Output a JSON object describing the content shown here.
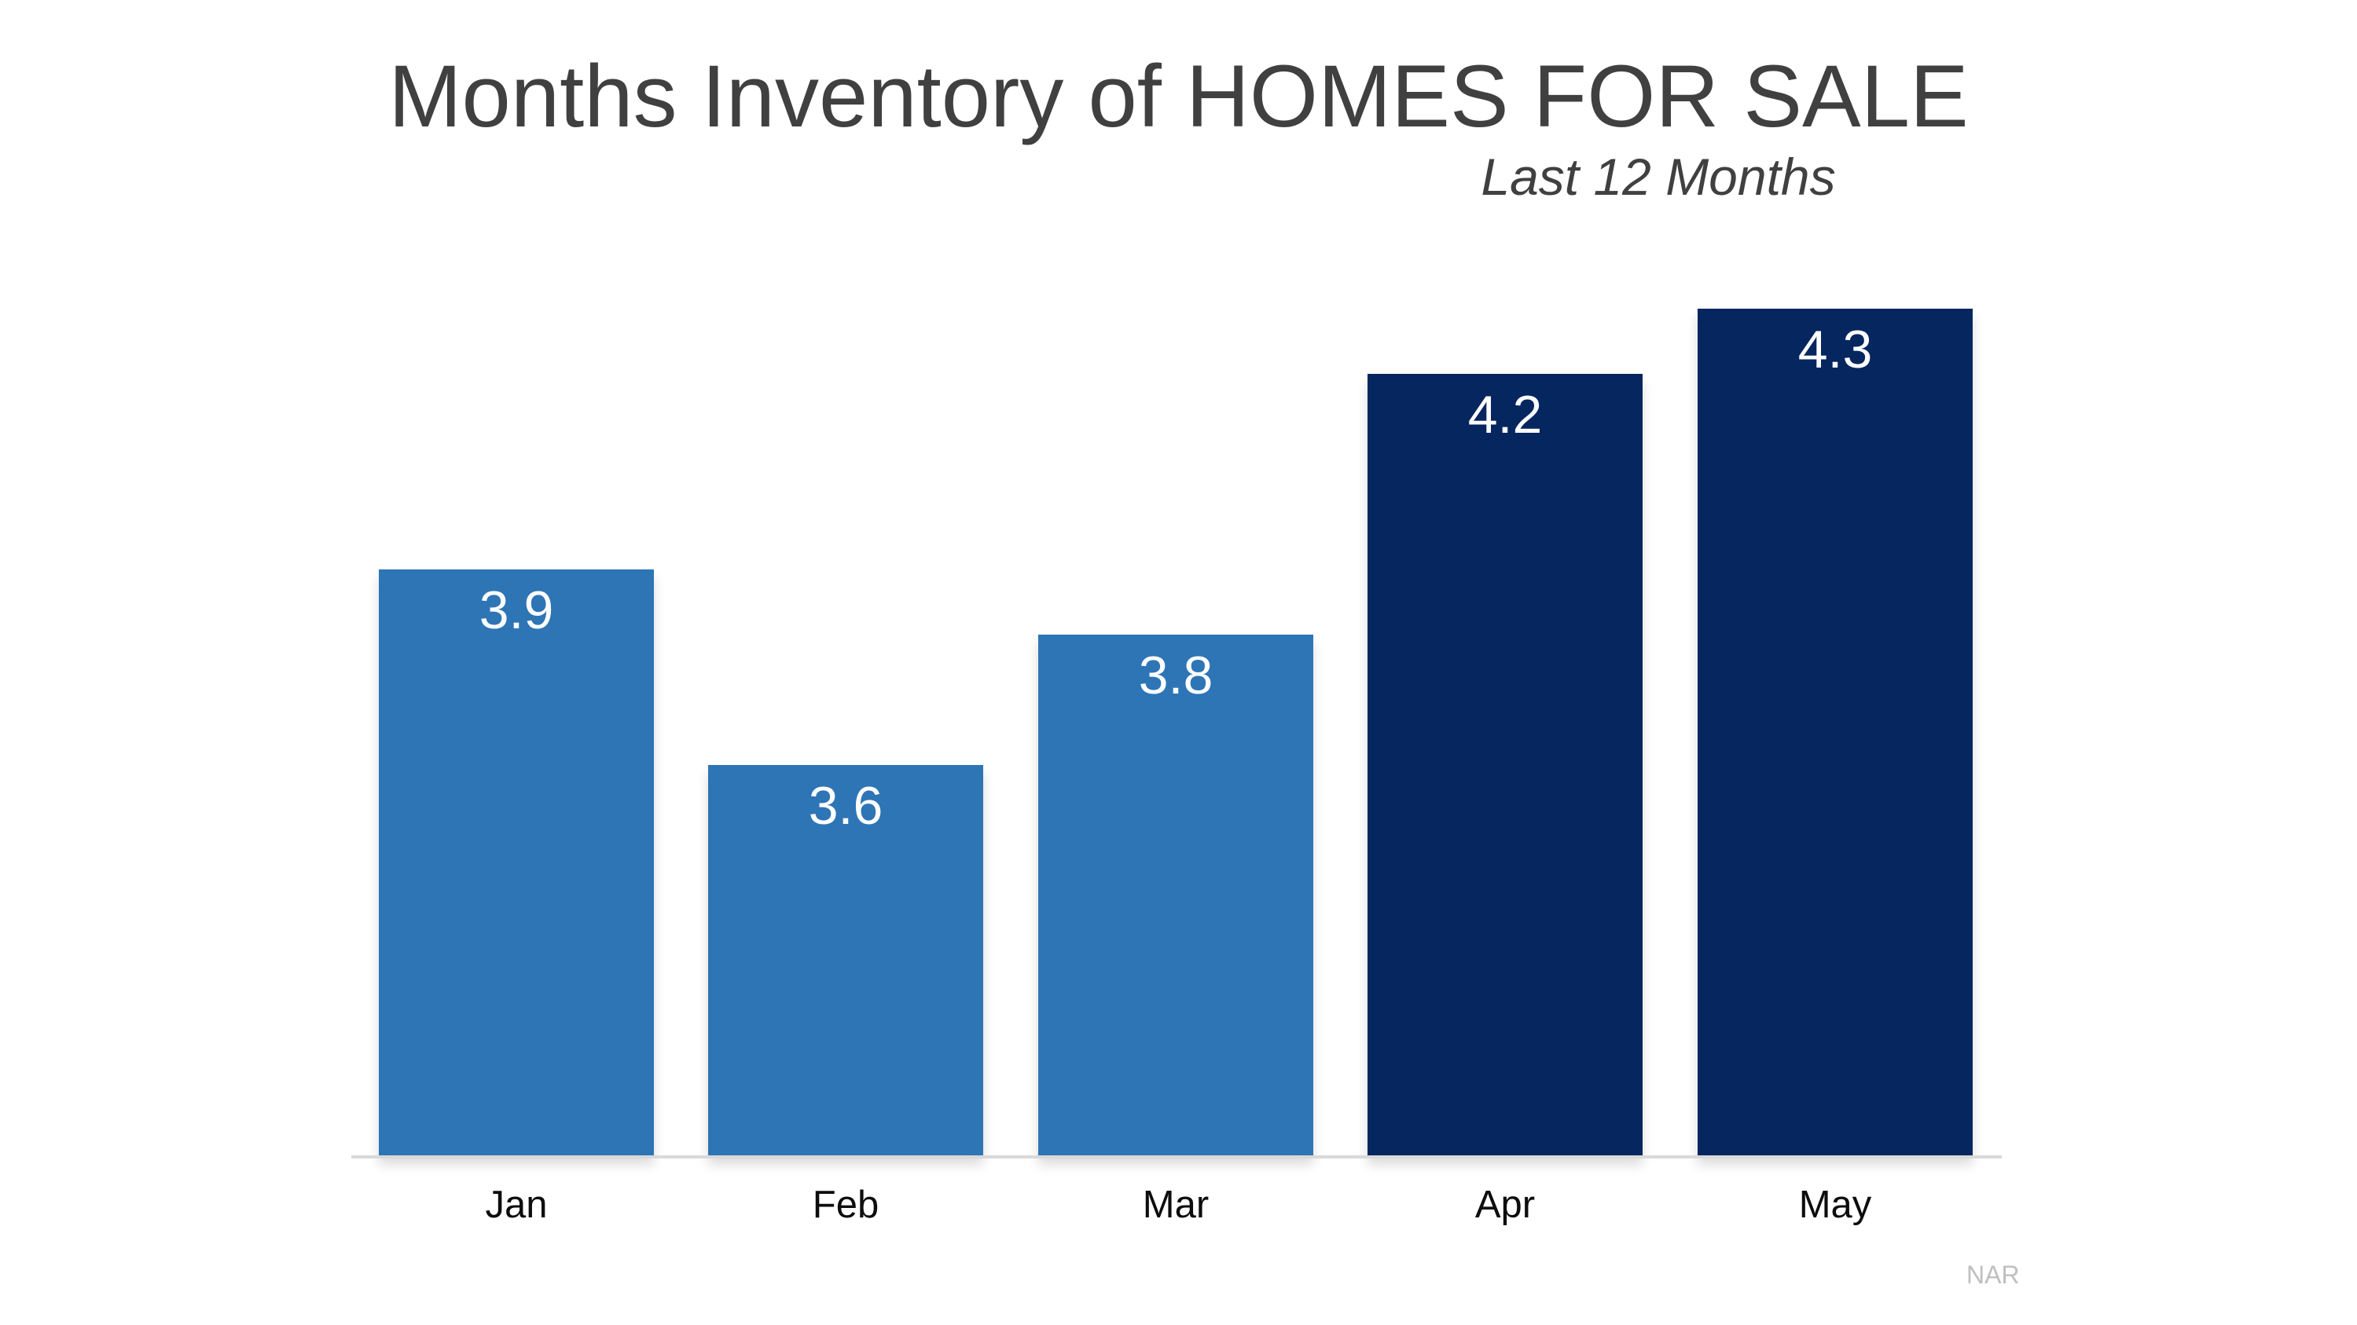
{
  "header": {
    "title": "Months Inventory of HOMES FOR SALE",
    "subtitle": "Last 12 Months"
  },
  "footer": {
    "source": "NAR"
  },
  "chart_data": {
    "type": "bar",
    "title": "Months Inventory of HOMES FOR SALE",
    "subtitle": "Last 12 Months",
    "categories": [
      "Jan",
      "Feb",
      "Mar",
      "Apr",
      "May"
    ],
    "values": [
      3.9,
      3.6,
      3.8,
      4.2,
      4.3
    ],
    "data_labels": [
      "3.9",
      "3.6",
      "3.8",
      "4.2",
      "4.3"
    ],
    "xlabel": "",
    "ylabel": "",
    "ylim": [
      3.0,
      4.45
    ],
    "baseline_value": 3.0,
    "grid": false,
    "legend_position": "none",
    "y_axis_visible": false,
    "bar_colors": [
      "#2E75B6",
      "#2E75B6",
      "#2E75B6",
      "#06265F",
      "#06265F"
    ],
    "value_label_color": "#FFFFFF",
    "axis_line_color": "#D9D9D9",
    "title_color": "#404040",
    "source": "NAR"
  }
}
